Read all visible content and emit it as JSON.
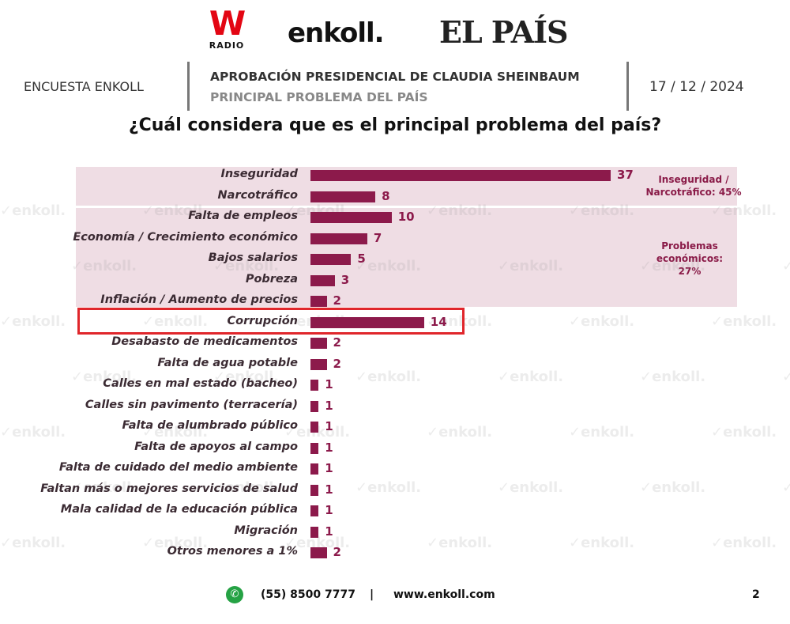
{
  "logos": {
    "w_radio_mark": "W",
    "w_radio_text": "RADIO",
    "enkoll": "enkoll.",
    "el_pais": "EL PAÍS"
  },
  "header": {
    "survey_label": "ENCUESTA ENKOLL",
    "title": "APROBACIÓN PRESIDENCIAL DE CLAUDIA SHEINBAUM",
    "subtitle": "PRINCIPAL PROBLEMA DEL PAÍS",
    "date": "17 / 12 / 2024"
  },
  "watermark_text": "enkoll.",
  "chart_data": {
    "type": "bar",
    "orientation": "horizontal",
    "title": "¿Cuál considera que es el principal problema del país?",
    "categories": [
      "Inseguridad",
      "Narcotráfico",
      "Falta de empleos",
      "Economía / Crecimiento económico",
      "Bajos salarios",
      "Pobreza",
      "Inflación / Aumento de precios",
      "Corrupción",
      "Desabasto de medicamentos",
      "Falta de agua potable",
      "Calles en mal estado (bacheo)",
      "Calles sin pavimento (terracería)",
      "Falta de alumbrado público",
      "Falta de apoyos al campo",
      "Falta de cuidado del medio ambiente",
      "Faltan más o mejores servicios de salud",
      "Mala calidad de la educación pública",
      "Migración",
      "Otros menores a 1%"
    ],
    "values": [
      37,
      8,
      10,
      7,
      5,
      3,
      2,
      14,
      2,
      2,
      1,
      1,
      1,
      1,
      1,
      1,
      1,
      1,
      2
    ],
    "bar_color": "#8c1a4b",
    "band_color": "#efdde4",
    "highlight_color": "#e0262b",
    "highlighted_category": "Corrupción",
    "groups": [
      {
        "label": "Inseguridad / Narcotráfico: 45%",
        "categories": [
          "Inseguridad",
          "Narcotráfico"
        ]
      },
      {
        "label": "Problemas económicos: 27%",
        "categories": [
          "Falta de empleos",
          "Economía / Crecimiento económico",
          "Bajos salarios",
          "Pobreza",
          "Inflación / Aumento de precios"
        ]
      }
    ],
    "xlim": [
      0,
      37
    ],
    "grid": false,
    "legend": "none"
  },
  "footer": {
    "phone": "(55) 8500 7777",
    "separator": "|",
    "website": "www.enkoll.com",
    "page_number": "2"
  }
}
